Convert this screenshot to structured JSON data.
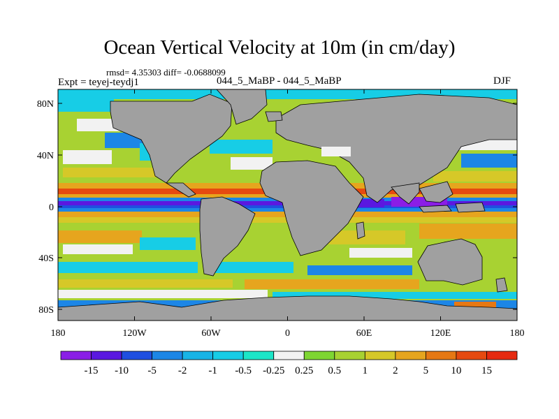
{
  "title": "Ocean Vertical Velocity at 10m (in cm/day)",
  "stats": "rmsd= 4.35303 diff= -0.0688099",
  "expt": "Expt = teyej-teydj1",
  "case": "044_5_MaBP - 044_5_MaBP",
  "season": "DJF",
  "axes": {
    "x_ticks": [
      "180",
      "120W",
      "60W",
      "0",
      "60E",
      "120E",
      "180"
    ],
    "y_ticks": [
      "80N",
      "40N",
      "0",
      "40S",
      "80S"
    ]
  },
  "colorbar": {
    "labels": [
      "-15",
      "-10",
      "-5",
      "-2",
      "-1",
      "-0.5",
      "-0.25",
      "0.25",
      "0.5",
      "1",
      "2",
      "5",
      "10",
      "15"
    ],
    "colors": [
      "#8a1ee6",
      "#5a18e0",
      "#1f4fe0",
      "#1c86e6",
      "#18b4e6",
      "#17cde6",
      "#1ce6c8",
      "#f2f2f2",
      "#7ed632",
      "#a8d232",
      "#d6c828",
      "#e6a51e",
      "#e67814",
      "#e64a10",
      "#e62a10"
    ]
  },
  "colors": {
    "land": "#a0a0a0",
    "ocean_base": "#a8d232"
  }
}
